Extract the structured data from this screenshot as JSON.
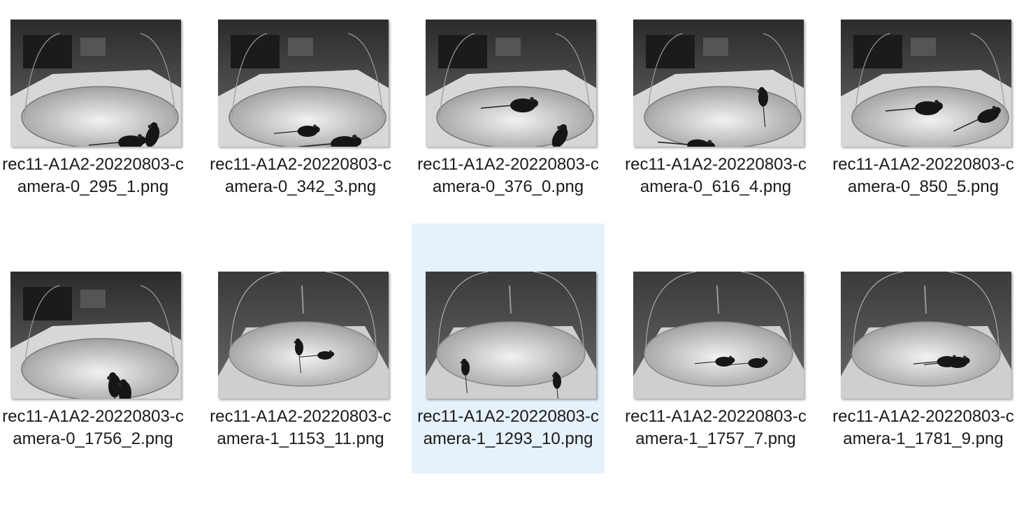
{
  "files": [
    {
      "name": "rec11-A1A2-20220803-camera-0_295_1.png",
      "selected": false,
      "camera": 0,
      "thumbnail_icon": "image-thumbnail-icon"
    },
    {
      "name": "rec11-A1A2-20220803-camera-0_342_3.png",
      "selected": false,
      "camera": 0,
      "thumbnail_icon": "image-thumbnail-icon"
    },
    {
      "name": "rec11-A1A2-20220803-camera-0_376_0.png",
      "selected": false,
      "camera": 0,
      "thumbnail_icon": "image-thumbnail-icon"
    },
    {
      "name": "rec11-A1A2-20220803-camera-0_616_4.png",
      "selected": false,
      "camera": 0,
      "thumbnail_icon": "image-thumbnail-icon"
    },
    {
      "name": "rec11-A1A2-20220803-camera-0_850_5.png",
      "selected": false,
      "camera": 0,
      "thumbnail_icon": "image-thumbnail-icon"
    },
    {
      "name": "rec11-A1A2-20220803-camera-0_1756_2.png",
      "selected": false,
      "camera": 0,
      "thumbnail_icon": "image-thumbnail-icon"
    },
    {
      "name": "rec11-A1A2-20220803-camera-1_1153_11.png",
      "selected": false,
      "camera": 1,
      "thumbnail_icon": "image-thumbnail-icon"
    },
    {
      "name": "rec11-A1A2-20220803-camera-1_1293_10.png",
      "selected": true,
      "camera": 1,
      "thumbnail_icon": "image-thumbnail-icon"
    },
    {
      "name": "rec11-A1A2-20220803-camera-1_1757_7.png",
      "selected": false,
      "camera": 1,
      "thumbnail_icon": "image-thumbnail-icon"
    },
    {
      "name": "rec11-A1A2-20220803-camera-1_1781_9.png",
      "selected": false,
      "camera": 1,
      "thumbnail_icon": "image-thumbnail-icon"
    }
  ],
  "colors": {
    "selection_background": "#e5f1fb",
    "text": "#1a1a1a"
  }
}
